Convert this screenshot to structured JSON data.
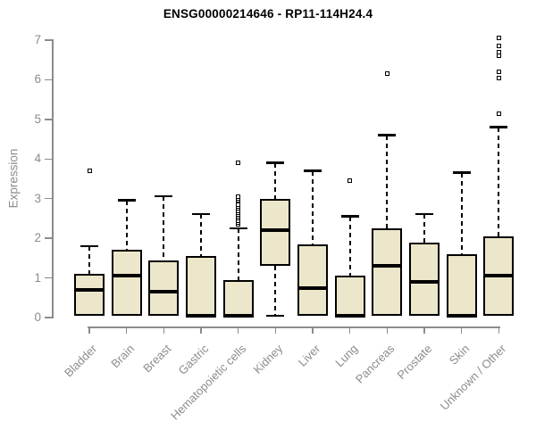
{
  "chart_data": {
    "type": "box",
    "title": "ENSG00000214646 - RP11-114H24.4",
    "ylabel": "Expression",
    "xlabel": "",
    "ylim": [
      0,
      7
    ],
    "yticks": [
      0,
      1,
      2,
      3,
      4,
      5,
      6,
      7
    ],
    "grid": false,
    "legend": "none",
    "categories": [
      "Bladder",
      "Brain",
      "Breast",
      "Gastric",
      "Hematopoietic cells",
      "Kidney",
      "Liver",
      "Lung",
      "Pancreas",
      "Prostate",
      "Skin",
      "Unknown / Other"
    ],
    "boxes": [
      {
        "label": "Bladder",
        "whisker_low": null,
        "q1": 0.05,
        "median": 0.7,
        "q3": 1.1,
        "whisker_high": 1.8,
        "outliers": [
          3.7
        ]
      },
      {
        "label": "Brain",
        "whisker_low": null,
        "q1": 0.05,
        "median": 1.05,
        "q3": 1.7,
        "whisker_high": 2.95,
        "outliers": []
      },
      {
        "label": "Breast",
        "whisker_low": null,
        "q1": 0.05,
        "median": 0.65,
        "q3": 1.45,
        "whisker_high": 3.05,
        "outliers": []
      },
      {
        "label": "Gastric",
        "whisker_low": null,
        "q1": 0.0,
        "median": 0.05,
        "q3": 1.55,
        "whisker_high": 2.6,
        "outliers": []
      },
      {
        "label": "Hematopoietic cells",
        "whisker_low": null,
        "q1": 0.0,
        "median": 0.05,
        "q3": 0.95,
        "whisker_high": 2.25,
        "outliers": [
          2.35,
          2.4,
          2.45,
          2.5,
          2.55,
          2.6,
          2.65,
          2.7,
          2.75,
          2.8,
          2.85,
          2.95,
          3.0,
          3.05,
          3.9
        ]
      },
      {
        "label": "Kidney",
        "whisker_low": 0.05,
        "q1": 1.3,
        "median": 2.2,
        "q3": 3.0,
        "whisker_high": 3.9,
        "outliers": []
      },
      {
        "label": "Liver",
        "whisker_low": null,
        "q1": 0.05,
        "median": 0.75,
        "q3": 1.85,
        "whisker_high": 3.7,
        "outliers": []
      },
      {
        "label": "Lung",
        "whisker_low": null,
        "q1": 0.0,
        "median": 0.05,
        "q3": 1.05,
        "whisker_high": 2.55,
        "outliers": [
          3.45
        ]
      },
      {
        "label": "Pancreas",
        "whisker_low": null,
        "q1": 0.05,
        "median": 1.3,
        "q3": 2.25,
        "whisker_high": 4.6,
        "outliers": [
          6.15
        ]
      },
      {
        "label": "Prostate",
        "whisker_low": null,
        "q1": 0.05,
        "median": 0.9,
        "q3": 1.9,
        "whisker_high": 2.6,
        "outliers": []
      },
      {
        "label": "Skin",
        "whisker_low": null,
        "q1": 0.0,
        "median": 0.05,
        "q3": 1.6,
        "whisker_high": 3.65,
        "outliers": []
      },
      {
        "label": "Unknown / Other",
        "whisker_low": null,
        "q1": 0.05,
        "median": 1.05,
        "q3": 2.05,
        "whisker_high": 4.8,
        "outliers": [
          5.15,
          6.05,
          6.2,
          6.6,
          6.7,
          6.85,
          7.05
        ]
      }
    ],
    "colors": {
      "box_fill": "#ECE7CA",
      "box_border": "#000000",
      "median": "#000000",
      "whisker": "#000000",
      "outlier_border": "#000000",
      "outlier_fill": "#FFFFFF",
      "axis": "#8C8C8C",
      "tick_label": "#8C8C8C",
      "title": "#000000",
      "background": "#FFFFFF"
    }
  }
}
